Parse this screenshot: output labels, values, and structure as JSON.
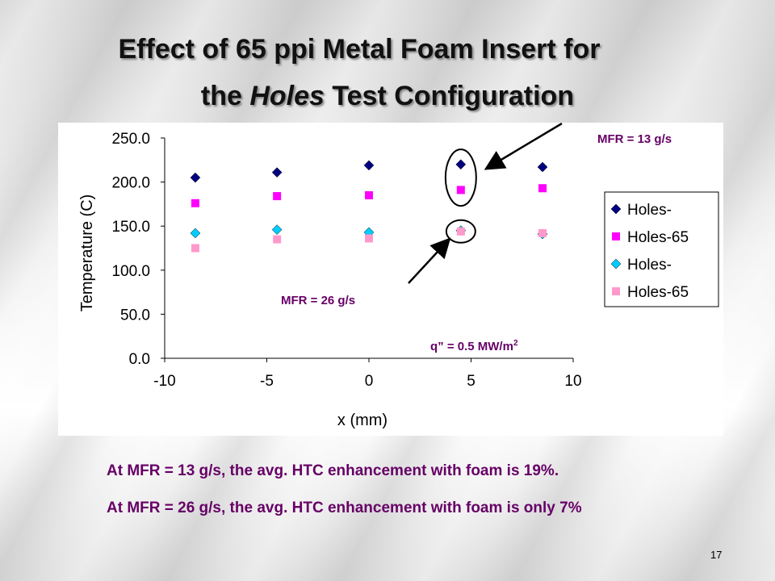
{
  "slide": {
    "title_line1": "Effect of 65 ppi Metal Foam Insert for",
    "title_line2_pre": "the ",
    "title_line2_italic": "Holes",
    "title_line2_post": " Test Configuration",
    "note1": "At MFR = 13 g/s, the avg. HTC enhancement with foam is 19%.",
    "note2": "At MFR = 26 g/s, the avg. HTC enhancement with foam is only 7%",
    "page_number": "17"
  },
  "chart_data": {
    "type": "scatter",
    "xlabel": "x (mm)",
    "ylabel": "Temperature (C)",
    "xlim": [
      -10,
      10
    ],
    "ylim": [
      0,
      250
    ],
    "xticks": [
      "-10",
      "-5",
      "0",
      "5",
      "10"
    ],
    "yticks": [
      "0.0",
      "50.0",
      "100.0",
      "150.0",
      "200.0",
      "250.0"
    ],
    "legend_position": "right",
    "series": [
      {
        "name": "Holes-",
        "marker": "diamond",
        "color": "#000080",
        "x": [
          -8.5,
          -4.5,
          0,
          4.5,
          8.5
        ],
        "y": [
          205,
          211,
          219,
          220,
          217
        ]
      },
      {
        "name": "Holes-65",
        "marker": "square",
        "color": "#ff00ff",
        "x": [
          -8.5,
          -4.5,
          0,
          4.5,
          8.5
        ],
        "y": [
          176,
          184,
          185,
          191,
          193
        ]
      },
      {
        "name": "Holes-",
        "marker": "diamond",
        "color": "#00ccff",
        "x": [
          -8.5,
          -4.5,
          0,
          4.5,
          8.5
        ],
        "y": [
          142,
          146,
          143,
          145,
          141
        ]
      },
      {
        "name": "Holes-65",
        "marker": "square",
        "color": "#ff99cc",
        "x": [
          -8.5,
          -4.5,
          0,
          4.5,
          8.5
        ],
        "y": [
          125,
          135,
          136,
          144,
          142
        ]
      }
    ],
    "annotations": {
      "mfr13": "MFR = 13 g/s",
      "mfr26": "MFR = 26 g/s",
      "heat_flux_base": "q” = 0.5 MW/m",
      "heat_flux_sup": "2"
    }
  }
}
